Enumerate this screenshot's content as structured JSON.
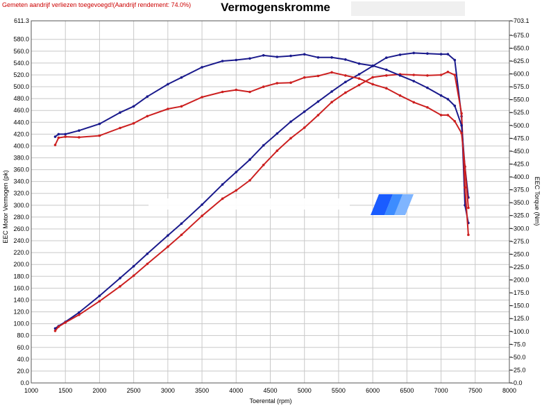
{
  "header": {
    "notice": "Gemeten aandrijf verliezen toegevoegd!(Aandrijf rendement: 74.0%)",
    "title": "Vermogenskromme"
  },
  "colors": {
    "run_blue": "#1a1a8c",
    "run_red": "#cc1f1f",
    "grid": "#c8c8c8",
    "notice": "#cc0000",
    "watermark_logo": "#1a5cff"
  },
  "chart_data": {
    "type": "line",
    "title": "Vermogenskromme",
    "xlabel": "Toerental (rpm)",
    "ylabel": "EEC Motor Vermogen (pk)",
    "y2label": "EEC Torque (Nm)",
    "xlim": [
      1000,
      8000
    ],
    "ylim": [
      0,
      611.3
    ],
    "y2lim": [
      0,
      703.1
    ],
    "xticks": [
      1000,
      1500,
      2000,
      2500,
      3000,
      3500,
      4000,
      4500,
      5000,
      5500,
      6000,
      6500,
      7000,
      7500,
      8000
    ],
    "yticks": [
      0,
      20,
      40,
      60,
      80,
      100,
      120,
      140,
      160,
      180,
      200,
      220,
      240,
      260,
      280,
      300,
      320,
      340,
      360,
      380,
      400,
      420,
      440,
      460,
      480,
      500,
      520,
      540,
      560,
      580,
      611.3
    ],
    "yticklabels": [
      "0.0",
      "20.0",
      "40.0",
      "60.0",
      "80.0",
      "100.0",
      "120.0",
      "140.0",
      "160.0",
      "180.0",
      "200.0",
      "220.0",
      "240.0",
      "260.0",
      "280.0",
      "300.0",
      "320.0",
      "340.0",
      "360.0",
      "380.0",
      "400.0",
      "420.0",
      "440.0",
      "460.0",
      "480.0",
      "500.0",
      "520.0",
      "540.0",
      "560.0",
      "580.0",
      "611.3"
    ],
    "y2ticks": [
      0,
      25,
      50,
      75,
      100,
      125,
      150,
      175,
      200,
      225,
      250,
      275,
      300,
      325,
      350,
      375,
      400,
      425,
      450,
      475,
      500,
      525,
      550,
      575,
      600,
      625,
      650,
      675,
      703.1
    ],
    "y2ticklabels": [
      "0.0",
      "25.0",
      "50.0",
      "75.0",
      "100.0",
      "125.0",
      "150.0",
      "175.0",
      "200.0",
      "225.0",
      "250.0",
      "275.0",
      "300.0",
      "325.0",
      "350.0",
      "375.0",
      "400.0",
      "425.0",
      "450.0",
      "475.0",
      "500.0",
      "525.0",
      "550.0",
      "575.0",
      "600.0",
      "625.0",
      "650.0",
      "675.0",
      "703.1"
    ],
    "grid": true,
    "series": [
      {
        "axis": "left",
        "color": "#1a1a8c",
        "x": [
          1350,
          1400,
          1500,
          1700,
          2000,
          2300,
          2500,
          2700,
          3000,
          3200,
          3500,
          3800,
          4000,
          4200,
          4400,
          4600,
          4800,
          5000,
          5200,
          5400,
          5600,
          5800,
          6000,
          6200,
          6400,
          6600,
          6800,
          7000,
          7100,
          7200,
          7300,
          7350,
          7400
        ],
        "y": [
          92,
          96,
          103,
          119,
          147,
          177,
          197,
          218,
          249,
          269,
          301,
          335,
          356,
          377,
          401,
          421,
          441,
          458,
          475,
          492,
          508,
          521,
          535,
          549,
          554,
          557,
          556,
          555,
          555,
          545,
          450,
          300,
          270
        ]
      },
      {
        "axis": "left",
        "color": "#cc1f1f",
        "x": [
          1350,
          1400,
          1500,
          1700,
          2000,
          2300,
          2500,
          2700,
          3000,
          3200,
          3500,
          3800,
          4000,
          4200,
          4400,
          4600,
          4800,
          5000,
          5200,
          5400,
          5600,
          5800,
          6000,
          6200,
          6400,
          6600,
          6800,
          7000,
          7100,
          7200,
          7300,
          7350,
          7400
        ],
        "y": [
          88,
          95,
          102,
          115,
          138,
          163,
          181,
          201,
          230,
          250,
          282,
          311,
          325,
          342,
          368,
          392,
          413,
          431,
          452,
          474,
          490,
          503,
          516,
          519,
          521,
          520,
          519,
          520,
          525,
          520,
          455,
          330,
          250
        ]
      },
      {
        "axis": "right",
        "color": "#1a1a8c",
        "x": [
          1350,
          1400,
          1500,
          1700,
          2000,
          2300,
          2500,
          2700,
          3000,
          3200,
          3500,
          3800,
          4000,
          4200,
          4400,
          4600,
          4800,
          5000,
          5200,
          5400,
          5600,
          5800,
          6000,
          6200,
          6400,
          6600,
          6800,
          7000,
          7100,
          7200,
          7300,
          7350,
          7400
        ],
        "y": [
          478,
          483,
          483,
          490,
          503,
          525,
          537,
          556,
          580,
          593,
          613,
          625,
          627,
          630,
          636,
          633,
          635,
          638,
          632,
          632,
          628,
          620,
          616,
          608,
          597,
          586,
          573,
          558,
          551,
          538,
          500,
          420,
          360
        ]
      },
      {
        "axis": "right",
        "color": "#cc1f1f",
        "x": [
          1350,
          1400,
          1500,
          1700,
          2000,
          2300,
          2500,
          2700,
          3000,
          3200,
          3500,
          3800,
          4000,
          4200,
          4400,
          4600,
          4800,
          5000,
          5200,
          5400,
          5600,
          5800,
          6000,
          6200,
          6400,
          6600,
          6800,
          7000,
          7100,
          7200,
          7300,
          7350,
          7400
        ],
        "y": [
          462,
          476,
          478,
          477,
          480,
          495,
          504,
          518,
          532,
          537,
          555,
          565,
          569,
          565,
          575,
          582,
          583,
          593,
          596,
          603,
          597,
          591,
          580,
          572,
          558,
          545,
          535,
          520,
          520,
          508,
          485,
          420,
          340
        ]
      }
    ]
  }
}
